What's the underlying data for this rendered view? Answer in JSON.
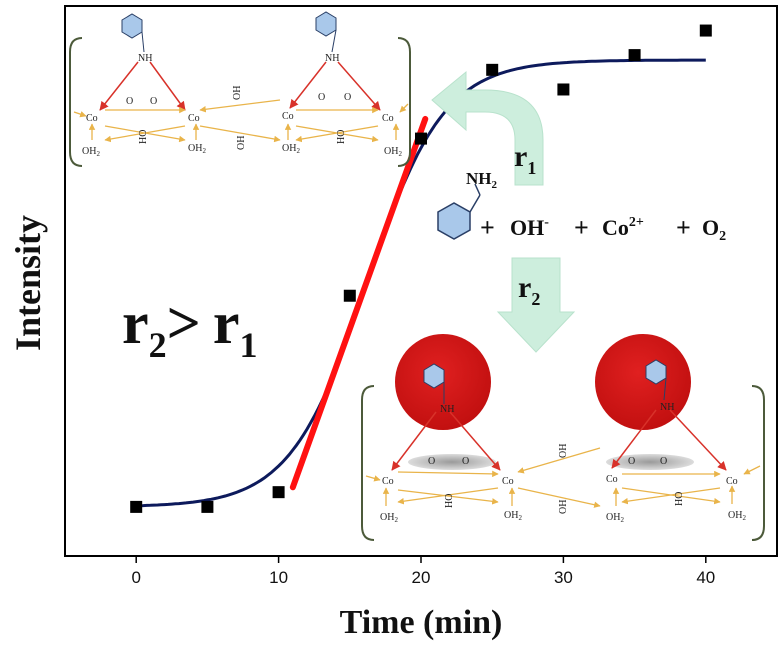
{
  "chart_data": {
    "type": "scatter",
    "title": "",
    "xlabel": "Time (min)",
    "ylabel": "Intensity",
    "xlim": [
      -5,
      45
    ],
    "ylim": [
      0,
      1.12
    ],
    "xticks": [
      0,
      10,
      20,
      30,
      40
    ],
    "xtick_labels": [
      "0",
      "10",
      "20",
      "30",
      "40"
    ],
    "y_ticks_shown": false,
    "grid": false,
    "series": [
      {
        "kind": "points",
        "marker": "square",
        "color": "#000000",
        "x": [
          0,
          5,
          10,
          15,
          20,
          25,
          30,
          35,
          40
        ],
        "y": [
          0.1,
          0.1,
          0.13,
          0.53,
          0.85,
          0.99,
          0.95,
          1.02,
          1.07
        ]
      },
      {
        "kind": "sigmoid-fit",
        "color": "#0d1a5c",
        "x_range": [
          0,
          40
        ],
        "params": {
          "base": 0.1,
          "amplitude": 0.91,
          "center": 16.2,
          "width": 2.7
        }
      },
      {
        "kind": "linear-fit",
        "color": "#ff1111",
        "x": [
          11,
          20.3
        ],
        "y": [
          0.14,
          0.89
        ]
      }
    ],
    "annotations": {
      "rate_comparison": {
        "r": "r",
        "sub2": "2",
        "gt": ">",
        "sub1": "1"
      },
      "r1_label": {
        "r": "r",
        "sub": "1"
      },
      "r2_label": {
        "r": "r",
        "sub": "2"
      },
      "reagents": {
        "amine": "NH",
        "amine_sub": "2",
        "plus": "+",
        "oh": "OH",
        "oh_sup": "-",
        "co": "Co",
        "co_sup": "2+",
        "o2": "O",
        "o2_sub": "2"
      },
      "structure_labels": {
        "co": "Co",
        "oh": "OH",
        "ho": "HO",
        "o": "O",
        "nh": "NH",
        "oh2": "OH",
        "oh2_sub": "2"
      }
    }
  },
  "colors": {
    "axis": "#000000",
    "fit_curve": "#0d1a5c",
    "linear_fit": "#ff1111",
    "arrow_fill": "#cdeedd",
    "ring_fill": "#a9c8ea",
    "ring_stroke": "#2a3f66",
    "bond_yellow": "#e9b44a",
    "bond_red": "#d8322a",
    "sphere": "#cc1414",
    "plus_red": "#e8321e",
    "bracket": "#4c5a3a"
  }
}
